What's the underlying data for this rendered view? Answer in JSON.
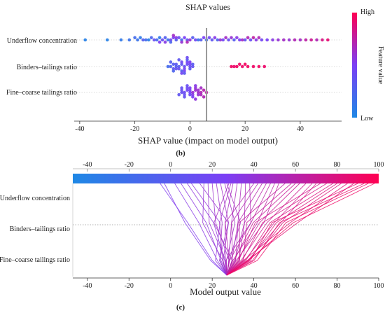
{
  "figure": {
    "panel_b_label": "(b)",
    "panel_c_label": "(c)"
  },
  "chart_data": [
    {
      "type": "scatter",
      "subtype": "shap_beeswarm",
      "title": "SHAP values",
      "xlabel": "SHAP value (impact on model output)",
      "ylabel": "",
      "xlim": [
        -42,
        55
      ],
      "xticks": [
        -40,
        -20,
        0,
        20,
        40
      ],
      "baseline_x": 6,
      "colorbar": {
        "label": "Feature value",
        "high": "High",
        "low": "Low",
        "colors": [
          "#1e88e5",
          "#7b3ff5",
          "#ff0052"
        ]
      },
      "features": [
        "Underflow concentration",
        "Binders–tailings ratio",
        "Fine–coarse tailings ratio"
      ],
      "series": [
        {
          "name": "Underflow concentration",
          "points": [
            [
              -38,
              0.05
            ],
            [
              -30,
              0.05
            ],
            [
              -25,
              0.1
            ],
            [
              -15,
              0.05
            ],
            [
              -12,
              0.2
            ],
            [
              -10,
              0.4
            ],
            [
              -8,
              0.15
            ],
            [
              -5,
              0.3
            ],
            [
              -3,
              0.2
            ],
            [
              -1,
              0.35
            ],
            [
              2,
              0.45
            ],
            [
              -19,
              0.15
            ],
            [
              -17,
              0.3
            ],
            [
              -14,
              0.25
            ],
            [
              -11,
              0.1
            ],
            [
              -9,
              0.3
            ],
            [
              -7,
              0.45
            ],
            [
              -6,
              0.5
            ],
            [
              -4,
              0.4
            ],
            [
              -2,
              0.5
            ],
            [
              1,
              0.3
            ],
            [
              3,
              0.15
            ],
            [
              -13,
              0.4
            ],
            [
              -16,
              0.2
            ],
            [
              -18,
              0.1
            ],
            [
              0,
              0.6
            ],
            [
              -1,
              0.7
            ],
            [
              -3,
              0.6
            ],
            [
              -5,
              0.55
            ],
            [
              -7,
              0.25
            ],
            [
              -9,
              0.55
            ],
            [
              -11,
              0.5
            ],
            [
              4,
              0.3
            ],
            [
              6,
              0.2
            ],
            [
              8,
              0.35
            ],
            [
              10,
              0.25
            ],
            [
              12,
              0.45
            ],
            [
              14,
              0.4
            ],
            [
              16,
              0.3
            ],
            [
              18,
              0.5
            ],
            [
              20,
              0.35
            ],
            [
              22,
              0.4
            ],
            [
              24,
              0.55
            ],
            [
              26,
              0.45
            ],
            [
              28,
              0.5
            ],
            [
              30,
              0.55
            ],
            [
              32,
              0.6
            ],
            [
              34,
              0.65
            ],
            [
              36,
              0.6
            ],
            [
              38,
              0.7
            ],
            [
              40,
              0.65
            ],
            [
              42,
              0.75
            ],
            [
              44,
              0.8
            ],
            [
              46,
              0.7
            ],
            [
              48,
              0.85
            ],
            [
              50,
              0.9
            ],
            [
              15,
              0.6
            ],
            [
              17,
              0.55
            ],
            [
              19,
              0.65
            ],
            [
              21,
              0.7
            ],
            [
              23,
              0.75
            ],
            [
              25,
              0.7
            ],
            [
              9,
              0.55
            ],
            [
              11,
              0.6
            ],
            [
              13,
              0.65
            ],
            [
              5,
              0.5
            ],
            [
              7,
              0.45
            ],
            [
              -20,
              0.2
            ],
            [
              -22,
              0.15
            ],
            [
              -6,
              0.65
            ]
          ]
        },
        {
          "name": "Binders–tailings ratio",
          "points": [
            [
              -8,
              0.2
            ],
            [
              -7,
              0.25
            ],
            [
              -6,
              0.3
            ],
            [
              -5,
              0.28
            ],
            [
              -4,
              0.3
            ],
            [
              -3,
              0.35
            ],
            [
              -2,
              0.38
            ],
            [
              -1,
              0.4
            ],
            [
              0,
              0.4
            ],
            [
              1,
              0.38
            ],
            [
              -6,
              0.35
            ],
            [
              -4,
              0.4
            ],
            [
              -2,
              0.45
            ],
            [
              0,
              0.45
            ],
            [
              -3,
              0.42
            ],
            [
              -5,
              0.33
            ],
            [
              -1,
              0.48
            ],
            [
              -7,
              0.3
            ],
            [
              -2,
              0.5
            ],
            [
              -3,
              0.28
            ],
            [
              -1,
              0.3
            ],
            [
              0,
              0.33
            ],
            [
              1,
              0.32
            ],
            [
              -4,
              0.35
            ],
            [
              -5,
              0.38
            ],
            [
              -6,
              0.25
            ],
            [
              -2,
              0.32
            ],
            [
              -3,
              0.45
            ],
            [
              -1,
              0.42
            ],
            [
              0,
              0.5
            ],
            [
              15,
              0.95
            ],
            [
              17,
              0.95
            ],
            [
              19,
              0.93
            ],
            [
              21,
              0.95
            ],
            [
              23,
              0.94
            ],
            [
              25,
              0.95
            ],
            [
              27,
              0.93
            ],
            [
              16,
              0.92
            ],
            [
              18,
              0.94
            ],
            [
              20,
              0.96
            ]
          ]
        },
        {
          "name": "Fine–coarse tailings ratio",
          "points": [
            [
              -3,
              0.4
            ],
            [
              -2,
              0.42
            ],
            [
              -1,
              0.45
            ],
            [
              0,
              0.45
            ],
            [
              1,
              0.6
            ],
            [
              2,
              0.62
            ],
            [
              3,
              0.65
            ],
            [
              4,
              0.7
            ],
            [
              5,
              0.72
            ],
            [
              6,
              0.75
            ],
            [
              -3,
              0.4
            ],
            [
              -2,
              0.4
            ],
            [
              -1,
              0.42
            ],
            [
              0,
              0.5
            ],
            [
              1,
              0.55
            ],
            [
              2,
              0.6
            ],
            [
              3,
              0.62
            ],
            [
              4,
              0.68
            ],
            [
              -4,
              0.35
            ],
            [
              -2,
              0.38
            ],
            [
              -1,
              0.4
            ],
            [
              0,
              0.42
            ],
            [
              1,
              0.5
            ],
            [
              2,
              0.55
            ],
            [
              3,
              0.6
            ],
            [
              -3,
              0.38
            ],
            [
              0,
              0.48
            ],
            [
              2,
              0.58
            ],
            [
              4,
              0.65
            ],
            [
              5,
              0.7
            ]
          ]
        }
      ]
    },
    {
      "type": "line",
      "subtype": "shap_decision_plot",
      "title": "",
      "xlabel": "Model output value",
      "ylabel": "",
      "xlim": [
        -47,
        100
      ],
      "xticks": [
        -40,
        -20,
        0,
        20,
        40,
        60,
        80,
        100
      ],
      "top_colorbar_ticks": [
        -40,
        -20,
        0,
        20,
        40,
        60,
        80,
        100
      ],
      "base_value": 27,
      "features": [
        "Underflow concentration",
        "Binders–tailings ratio",
        "Fine–coarse tailings ratio"
      ],
      "paths_end_values": [
        -3,
        -5,
        2,
        5,
        8,
        10,
        14,
        16,
        18,
        20,
        22,
        24,
        26,
        27,
        28,
        29,
        30,
        32,
        34,
        36,
        38,
        40,
        42,
        44,
        46,
        48,
        50,
        52,
        55,
        58,
        60,
        62,
        65,
        68,
        70,
        72,
        75,
        78,
        80,
        82,
        85,
        88,
        90,
        93,
        95,
        98
      ]
    }
  ]
}
